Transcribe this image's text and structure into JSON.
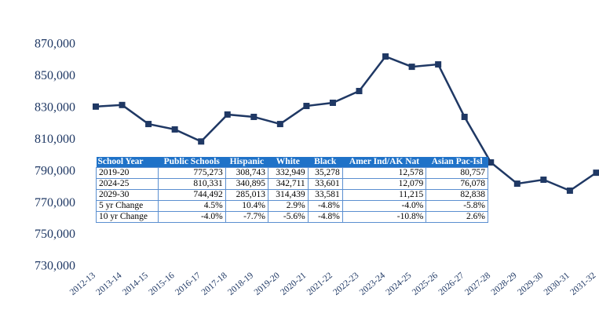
{
  "chart_data": {
    "type": "line",
    "categories": [
      "2012-13",
      "2013-14",
      "2014-15",
      "2015-16",
      "2016-17",
      "2017-18",
      "2018-19",
      "2019-20",
      "2020-21",
      "2021-22",
      "2022-23",
      "2023-24",
      "2024-25",
      "2025-26",
      "2026-27",
      "2027-28",
      "2028-29",
      "2029-30",
      "2030-31",
      "2031-32"
    ],
    "series": [
      {
        "color": "#1f3864",
        "values": [
          831000,
          832000,
          820000,
          816600,
          809000,
          826000,
          824500,
          820000,
          831400,
          833400,
          840800,
          862600,
          856100,
          857600,
          824500,
          795800,
          782400,
          784900,
          778000,
          789300
        ]
      }
    ],
    "ylim": [
      730000,
      870000
    ],
    "yticks": [
      {
        "value": 730000,
        "label": "730,000"
      },
      {
        "value": 750000,
        "label": "750,000"
      },
      {
        "value": 770000,
        "label": "770,000"
      },
      {
        "value": 790000,
        "label": "790,000"
      },
      {
        "value": 810000,
        "label": "810,000"
      },
      {
        "value": 830000,
        "label": "830,000"
      },
      {
        "value": 850000,
        "label": "850,000"
      },
      {
        "value": 870000,
        "label": "870,000"
      }
    ],
    "grid": false
  },
  "table": {
    "columns": [
      "School Year",
      "Public Schools",
      "Hispanic",
      "White",
      "Black",
      "Amer Ind/AK Nat",
      "Asian Pac-Isl"
    ],
    "rows": [
      [
        "2019-20",
        "775,273",
        "308,743",
        "332,949",
        "35,278",
        "12,578",
        "80,757"
      ],
      [
        "2024-25",
        "810,331",
        "340,895",
        "342,711",
        "33,601",
        "12,079",
        "76,078"
      ],
      [
        "2029-30",
        "744,492",
        "285,013",
        "314,439",
        "33,581",
        "11,215",
        "82,838"
      ],
      [
        "5 yr Change",
        "4.5%",
        "10.4%",
        "2.9%",
        "-4.8%",
        "-4.0%",
        "-5.8%"
      ],
      [
        "10 yr Change",
        "-4.0%",
        "-7.7%",
        "-5.6%",
        "-4.8%",
        "-10.8%",
        "2.6%"
      ]
    ]
  }
}
